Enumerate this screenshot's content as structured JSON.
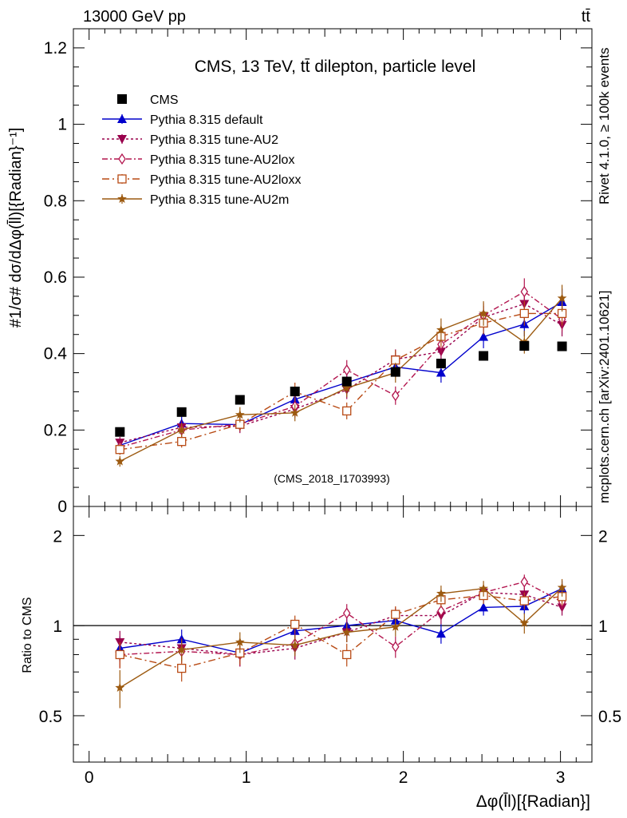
{
  "header": {
    "beam": "13000 GeV pp",
    "process": "tt̄"
  },
  "side_labels": {
    "rivet": "Rivet 4.1.0, ≥ 100k events",
    "mcplots": "mcplots.cern.ch [arXiv:2401.10621]"
  },
  "ratio_ylabel": "Ratio to CMS",
  "colors": {
    "cms": "#000000",
    "default": "#0000cc",
    "au2": "#99004c",
    "au2lox": "#b3164f",
    "au2loxx": "#b84a14",
    "au2m": "#9c5a10"
  },
  "chart_data": [
    {
      "type": "scatter",
      "title": "CMS, 13 TeV, tt̄ dilepton, particle level",
      "ylabel": "#1/σ# dσ/dΔφ(l̄l)[{Radian}⁻¹]",
      "xlabel": "Δφ(l̄l)[{Radian}]",
      "watermark": "(CMS_2018_I1703993)",
      "xlim": [
        -0.1,
        3.2
      ],
      "ylim": [
        0,
        1.25
      ],
      "x_ticks": [
        "0",
        "1",
        "2",
        "3"
      ],
      "y_ticks": [
        "0",
        "0.2",
        "0.4",
        "0.6",
        "0.8",
        "1",
        "1.2"
      ],
      "x": [
        0.196,
        0.589,
        0.96,
        1.31,
        1.64,
        1.95,
        2.24,
        2.51,
        2.77,
        3.01
      ],
      "series": [
        {
          "name": "CMS",
          "marker": "square",
          "values": [
            0.195,
            0.247,
            0.279,
            0.301,
            0.327,
            0.352,
            0.374,
            0.394,
            0.42,
            0.419
          ],
          "errors": [
            0.005,
            0.005,
            0.005,
            0.005,
            0.005,
            0.005,
            0.005,
            0.005,
            0.005,
            0.005
          ]
        },
        {
          "name": "Pythia 8.315 default",
          "marker": "triangle-up",
          "line": "solid",
          "values": [
            0.16,
            0.217,
            0.214,
            0.28,
            0.324,
            0.365,
            0.35,
            0.444,
            0.477,
            0.535
          ],
          "errors": [
            0.015,
            0.018,
            0.018,
            0.022,
            0.024,
            0.026,
            0.026,
            0.03,
            0.032,
            0.035
          ]
        },
        {
          "name": "Pythia 8.315 tune-AU2",
          "marker": "triangle-down",
          "line": "dotted",
          "values": [
            0.167,
            0.207,
            0.21,
            0.255,
            0.305,
            0.385,
            0.405,
            0.495,
            0.53,
            0.475
          ],
          "errors": [
            0.015,
            0.018,
            0.018,
            0.022,
            0.024,
            0.026,
            0.028,
            0.03,
            0.032,
            0.03
          ]
        },
        {
          "name": "Pythia 8.315 tune-AU2lox",
          "marker": "diamond",
          "line": "dashdot",
          "values": [
            0.155,
            0.2,
            0.215,
            0.262,
            0.357,
            0.29,
            0.424,
            0.5,
            0.562,
            0.49
          ],
          "errors": [
            0.015,
            0.018,
            0.018,
            0.022,
            0.026,
            0.024,
            0.028,
            0.032,
            0.035,
            0.032
          ]
        },
        {
          "name": "Pythia 8.315 tune-AU2loxx",
          "marker": "square-open",
          "line": "dashdot",
          "values": [
            0.149,
            0.17,
            0.215,
            0.3,
            0.25,
            0.383,
            0.445,
            0.48,
            0.505,
            0.505
          ],
          "errors": [
            0.014,
            0.016,
            0.018,
            0.024,
            0.022,
            0.026,
            0.028,
            0.03,
            0.032,
            0.032
          ]
        },
        {
          "name": "Pythia 8.315 tune-AU2m",
          "marker": "star",
          "line": "solid",
          "values": [
            0.118,
            0.2,
            0.24,
            0.245,
            0.31,
            0.35,
            0.462,
            0.505,
            0.43,
            0.545
          ],
          "errors": [
            0.014,
            0.018,
            0.02,
            0.022,
            0.024,
            0.026,
            0.03,
            0.032,
            0.03,
            0.035
          ]
        }
      ]
    },
    {
      "type": "scatter",
      "title": "",
      "ylabel": "Ratio to CMS",
      "xlabel": "Δφ(l̄l)[{Radian}]",
      "xlim": [
        -0.1,
        3.2
      ],
      "ylim": [
        0.35,
        2.5
      ],
      "y_scale": "log",
      "x_ticks": [
        "0",
        "1",
        "2",
        "3"
      ],
      "y_ticks": [
        "0.5",
        "1",
        "2"
      ],
      "reference_line": 1,
      "x": [
        0.196,
        0.589,
        0.96,
        1.31,
        1.64,
        1.95,
        2.24,
        2.51,
        2.77,
        3.01
      ],
      "series": [
        {
          "name": "Pythia 8.315 default",
          "values": [
            0.84,
            0.9,
            0.81,
            0.96,
            1.0,
            1.04,
            0.94,
            1.15,
            1.16,
            1.33
          ],
          "errors": [
            0.08,
            0.07,
            0.07,
            0.07,
            0.07,
            0.07,
            0.07,
            0.07,
            0.07,
            0.08
          ]
        },
        {
          "name": "Pythia 8.315 tune-AU2",
          "values": [
            0.88,
            0.84,
            0.8,
            0.84,
            0.95,
            1.08,
            1.08,
            1.29,
            1.27,
            1.15
          ],
          "errors": [
            0.08,
            0.07,
            0.07,
            0.07,
            0.07,
            0.07,
            0.07,
            0.07,
            0.07,
            0.07
          ]
        },
        {
          "name": "Pythia 8.315 tune-AU2lox",
          "values": [
            0.8,
            0.82,
            0.8,
            0.87,
            1.1,
            0.85,
            1.12,
            1.29,
            1.4,
            1.2
          ],
          "errors": [
            0.08,
            0.07,
            0.07,
            0.07,
            0.08,
            0.07,
            0.07,
            0.08,
            0.08,
            0.08
          ]
        },
        {
          "name": "Pythia 8.315 tune-AU2loxx",
          "values": [
            0.8,
            0.72,
            0.81,
            1.01,
            0.8,
            1.09,
            1.22,
            1.26,
            1.21,
            1.25
          ],
          "errors": [
            0.08,
            0.07,
            0.07,
            0.07,
            0.07,
            0.07,
            0.07,
            0.08,
            0.08,
            0.08
          ]
        },
        {
          "name": "Pythia 8.315 tune-AU2m",
          "values": [
            0.62,
            0.83,
            0.88,
            0.86,
            0.95,
            0.99,
            1.28,
            1.33,
            1.02,
            1.34
          ],
          "errors": [
            0.09,
            0.07,
            0.07,
            0.07,
            0.07,
            0.07,
            0.08,
            0.08,
            0.08,
            0.09
          ]
        }
      ]
    }
  ]
}
